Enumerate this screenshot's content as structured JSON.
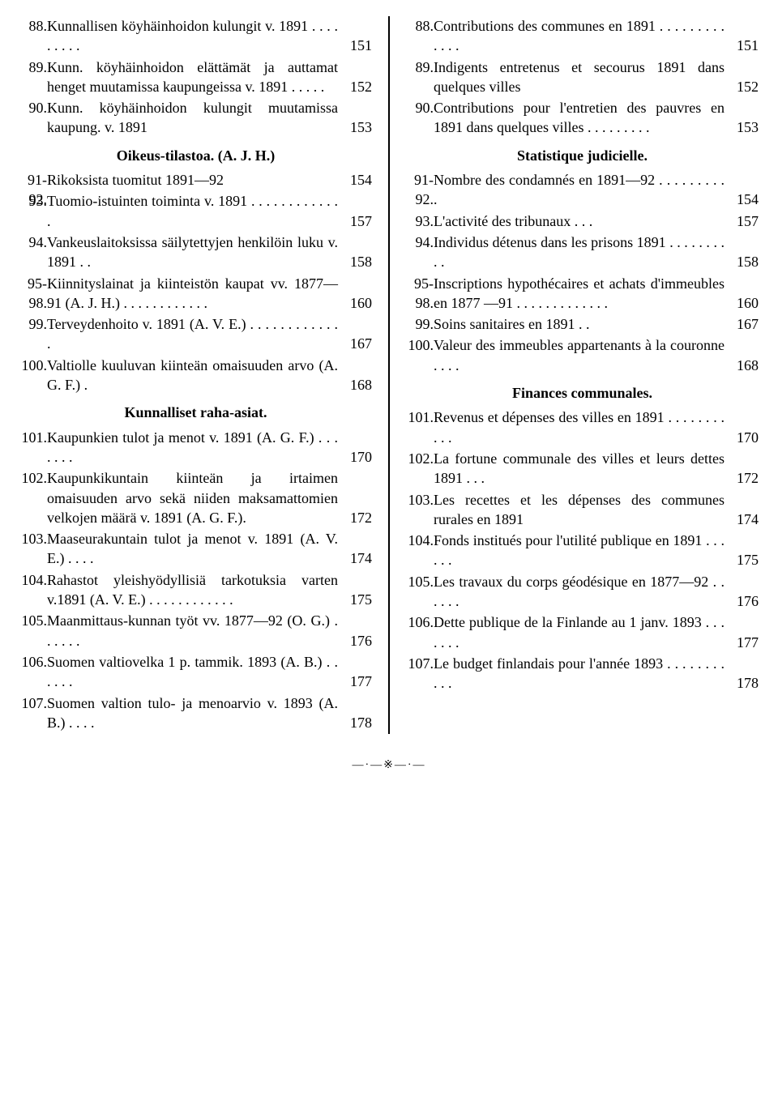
{
  "left": {
    "items": [
      {
        "n": "88.",
        "t": "Kunnallisen köyhäinhoidon ku­lungit v. 1891 . . . . . . . . .",
        "p": "151"
      },
      {
        "n": "89.",
        "t": "Kunn. köyhäinhoidon elättämät ja auttamat henget muutamissa kaupungeissa v. 1891 . . . . .",
        "p": "152"
      },
      {
        "n": "90.",
        "t": "Kunn. köyhäinhoidon kulungit muutamissa kaupung. v. 1891",
        "p": "153"
      }
    ],
    "heading1": "Oikeus-tilastoa. (A. J. H.)",
    "items2": [
      {
        "n": "91-92.",
        "t": "Rikoksista tuomitut 1891—92",
        "p": "154"
      },
      {
        "n": "93.",
        "t": "Tuomio-istuinten toiminta v. 1891 . . . . . . . . . . . . .",
        "p": "157"
      },
      {
        "n": "94.",
        "t": "Vankeuslaitoksissa säilytetty­jen henkilöin luku v. 1891 . .",
        "p": "158"
      },
      {
        "n": "95-98.",
        "t": "Kiinnityslainat ja kiinteis­tön kaupat vv. 1877—91 (A. J. H.) . . . . . . . . . . . .",
        "p": "160"
      },
      {
        "n": "99.",
        "t": "Terveydenhoito v. 1891 (A. V. E.) . . . . . . . . . . . . .",
        "p": "167"
      },
      {
        "n": "100.",
        "t": "Valtiolle kuuluvan kiinteän omaisuuden arvo (A. G. F.) .",
        "p": "168"
      }
    ],
    "heading2": "Kunnalliset raha-asiat.",
    "items3": [
      {
        "n": "101.",
        "t": "Kaupunkien tulot ja menot v. 1891 (A. G. F.) . . . . . . .",
        "p": "170"
      },
      {
        "n": "102.",
        "t": "Kaupunkikuntain kiinteän ja irtaimen omaisuuden arvo sekä niiden maksamattomien velko­jen määrä v. 1891 (A. G. F.).",
        "p": "172"
      },
      {
        "n": "103.",
        "t": "Maaseurakuntain tulot ja me­not v. 1891 (A. V. E.) . . . .",
        "p": "174"
      },
      {
        "n": "104.",
        "t": "Rahastot yleishyödyllisiä tar­kotuksia varten v.1891 (A. V. E.) . . . . . . . . . . . .",
        "p": "175"
      },
      {
        "n": "105.",
        "t": "Maanmittaus-kunnan työt vv. 1877—92 (O. G.) . . . . . .",
        "p": "176"
      },
      {
        "n": "106.",
        "t": "Suomen valtiovelka 1 p. tam­mik. 1893 (A. B.) . . . . . .",
        "p": "177"
      },
      {
        "n": "107.",
        "t": "Suomen valtion tulo- ja meno­arvio v. 1893 (A. B.) . . . .",
        "p": "178"
      }
    ]
  },
  "right": {
    "items": [
      {
        "n": "88.",
        "t": "Contributions des communes en 1891 . . . . . . . . . . . . .",
        "p": "151"
      },
      {
        "n": "89.",
        "t": "Indigents entretenus et secou­rus 1891 dans quelques villes",
        "p": "152"
      },
      {
        "n": "90.",
        "t": "Contributions pour l'entretien des pauvres en 1891 dans quel­ques villes . . . . . . . . .",
        "p": "153"
      }
    ],
    "heading1": "Statistique judicielle.",
    "items2": [
      {
        "n": "91-92.",
        "t": "Nombre des condamnés en 1891—92 . . . . . . . . . .",
        "p": "154"
      },
      {
        "n": "93.",
        "t": "L'activité des tribunaux . . .",
        "p": "157"
      },
      {
        "n": "94.",
        "t": "Individus détenus dans les pri­sons 1891 . . . . . . . . . .",
        "p": "158"
      },
      {
        "n": "95-98.",
        "t": "Inscriptions hypothécaires et achats d'immeubles en 1877 —91 . . . . . . . . . . . . .",
        "p": "160"
      },
      {
        "n": "99.",
        "t": "Soins sanitaires en 1891 . .",
        "p": "167"
      },
      {
        "n": "100.",
        "t": "Valeur des immeubles appar­tenants à la couronne . . . .",
        "p": "168"
      }
    ],
    "heading2": "Finances communales.",
    "items3": [
      {
        "n": "101.",
        "t": "Revenus et dépenses des villes en 1891 . . . . . . . . . . .",
        "p": "170"
      },
      {
        "n": "102.",
        "t": "La fortune communale des vil­les et leurs dettes 1891 . . .",
        "p": "172"
      },
      {
        "n": "103.",
        "t": "Les recettes et les dépenses des communes rurales en 1891",
        "p": "174"
      },
      {
        "n": "104.",
        "t": "Fonds institués pour l'utilité publique en 1891 . . . . . .",
        "p": "175"
      },
      {
        "n": "105.",
        "t": "Les travaux du corps géodési­que en 1877—92 . . . . . .",
        "p": "176"
      },
      {
        "n": "106.",
        "t": "Dette publique de la Finlande au 1 janv. 1893 . . . . . . .",
        "p": "177"
      },
      {
        "n": "107.",
        "t": "Le budget finlandais pour l'an­née 1893 . . . . . . . . . . .",
        "p": "178"
      }
    ]
  },
  "ornament": "—·—※—·—"
}
